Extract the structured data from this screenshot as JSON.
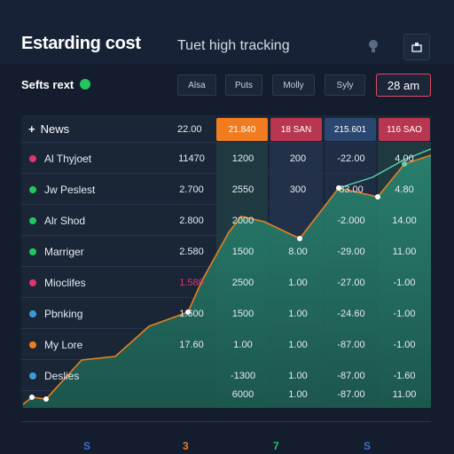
{
  "header": {
    "title": "Estarding cost",
    "search_text": "Tuet high tracking",
    "bulb_icon": "lightbulb-icon",
    "export_icon": "export-icon"
  },
  "toolbar": {
    "subtitle": "Sefts rext",
    "filters": [
      "Alsa",
      "Puts",
      "Molly",
      "Syly"
    ],
    "time": "28 am"
  },
  "table": {
    "news_label": "News",
    "news_value": "22.00",
    "headers": [
      {
        "label": "21.840",
        "color": "#f07c1f"
      },
      {
        "label": "18 SAN",
        "color": "#b8364f"
      },
      {
        "label": "215.601",
        "color": "#2a4770"
      },
      {
        "label": "116 SAO",
        "color": "#b8364f"
      }
    ],
    "rows": [
      {
        "name": "Al Thyjoet",
        "dot": "#e0356a",
        "c0": "11470",
        "c1": "1200",
        "c2": "200",
        "c3": "-22.00",
        "c4": "4.00"
      },
      {
        "name": "Jw Peslest",
        "dot": "#22c55e",
        "c0": "2.700",
        "c1": "2550",
        "c2": "300",
        "c3": "83.00",
        "c4": "4.80"
      },
      {
        "name": "Alr Shod",
        "dot": "#22c55e",
        "c0": "2.800",
        "c1": "2000",
        "c2": "",
        "c3": "-2.000",
        "c4": "14.00"
      },
      {
        "name": "Marriger",
        "dot": "#22c55e",
        "c0": "2.580",
        "c1": "1500",
        "c2": "8.00",
        "c3": "-29.00",
        "c4": "11.00"
      },
      {
        "name": "Mioclifes",
        "dot": "#e0356a",
        "c0": "1.580",
        "c1": "2500",
        "c2": "1.00",
        "c3": "-27.00",
        "c4": "-1.00"
      },
      {
        "name": "Pbnking",
        "dot": "#3b9bd6",
        "c0": "1.600",
        "c1": "1500",
        "c2": "1.00",
        "c3": "-24.60",
        "c4": "-1.00"
      },
      {
        "name": "My Lore",
        "dot": "#f07c1f",
        "c0": "17.60",
        "c1": "1.00",
        "c2": "1.00",
        "c3": "-87.00",
        "c4": "-1.00"
      },
      {
        "name": "Deslies",
        "dot": "#3b9bd6",
        "c0": "",
        "c1": "-1300",
        "c2": "1.00",
        "c3": "-87.00",
        "c4": "-1.60"
      },
      {
        "name": "",
        "dot": "",
        "c0": "",
        "c1": "6000",
        "c2": "1.00",
        "c3": "-87.00",
        "c4": "11.00"
      }
    ]
  },
  "footer": {
    "numbers": [
      {
        "text": "S",
        "color": "#3b6fd6"
      },
      {
        "text": "3",
        "color": "#f07c1f"
      },
      {
        "text": "7",
        "color": "#22c55e"
      },
      {
        "text": "S",
        "color": "#3b6fd6"
      }
    ]
  },
  "colors": {
    "accent_orange": "#f07c1f",
    "accent_red": "#b8364f",
    "accent_green": "#22c55e",
    "area_fill": "#1f6e5c"
  }
}
